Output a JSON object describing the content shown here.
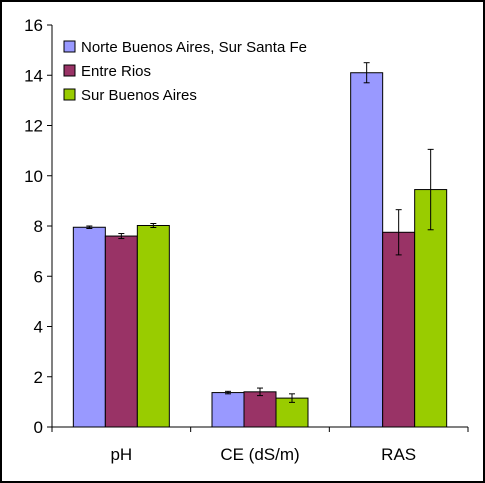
{
  "chart_data": {
    "type": "bar",
    "title": "",
    "xlabel": "",
    "ylabel": "",
    "categories": [
      "pH",
      "CE (dS/m)",
      "RAS"
    ],
    "ylim": [
      0,
      16
    ],
    "yticks": [
      0,
      2,
      4,
      6,
      8,
      10,
      12,
      14,
      16
    ],
    "grid": false,
    "legend_position": "top-left",
    "series": [
      {
        "name": "Norte Buenos Aires, Sur Santa Fe",
        "color": "#9999ff",
        "values": [
          7.95,
          1.37,
          14.1
        ],
        "errors": [
          0.05,
          0.05,
          0.4
        ]
      },
      {
        "name": "Entre Rios",
        "color": "#993366",
        "values": [
          7.6,
          1.4,
          7.75
        ],
        "errors": [
          0.1,
          0.15,
          0.9
        ]
      },
      {
        "name": "Sur Buenos Aires",
        "color": "#99cc00",
        "values": [
          8.02,
          1.15,
          9.45
        ],
        "errors": [
          0.08,
          0.17,
          1.6
        ]
      }
    ]
  }
}
